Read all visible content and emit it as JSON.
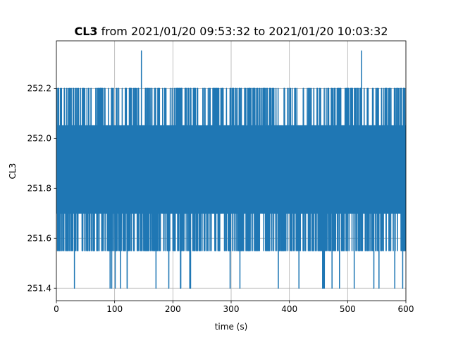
{
  "chart_data": {
    "type": "line",
    "title_bold": "CL3",
    "title_rest": " from 2021/01/20 09:53:32 to 2021/01/20 10:03:32",
    "xlabel": "time (s)",
    "ylabel": "CL3",
    "xlim": [
      0,
      600
    ],
    "ylim": [
      251.35,
      252.39
    ],
    "grid": true,
    "x_ticks": [
      0,
      100,
      200,
      300,
      400,
      500,
      600
    ],
    "x_tick_labels": [
      "0",
      "100",
      "200",
      "300",
      "400",
      "500",
      "600"
    ],
    "y_ticks": [
      251.4,
      251.6,
      251.8,
      252.0,
      252.2
    ],
    "y_tick_labels": [
      "251.4",
      "251.6",
      "251.8",
      "252.0",
      "252.2"
    ],
    "sampling_interval_s": 0.1,
    "levels": [
      251.4,
      251.55,
      251.7,
      251.85,
      252.05,
      252.2,
      252.35
    ],
    "level_weights": [
      0.002,
      0.06,
      0.25,
      0.32,
      0.31,
      0.056,
      0.0
    ],
    "spikes": [
      {
        "x": 146,
        "y": 252.35
      },
      {
        "x": 524,
        "y": 252.35
      },
      {
        "x": 31,
        "y": 251.4
      },
      {
        "x": 95,
        "y": 251.4
      },
      {
        "x": 101,
        "y": 251.4
      },
      {
        "x": 171,
        "y": 251.4
      },
      {
        "x": 193,
        "y": 251.4
      },
      {
        "x": 213,
        "y": 251.4
      },
      {
        "x": 381,
        "y": 251.4
      },
      {
        "x": 457,
        "y": 251.4
      },
      {
        "x": 460,
        "y": 251.4
      },
      {
        "x": 486,
        "y": 251.4
      },
      {
        "x": 545,
        "y": 251.4
      }
    ],
    "series": [
      {
        "color": "#1f77b4"
      }
    ]
  }
}
